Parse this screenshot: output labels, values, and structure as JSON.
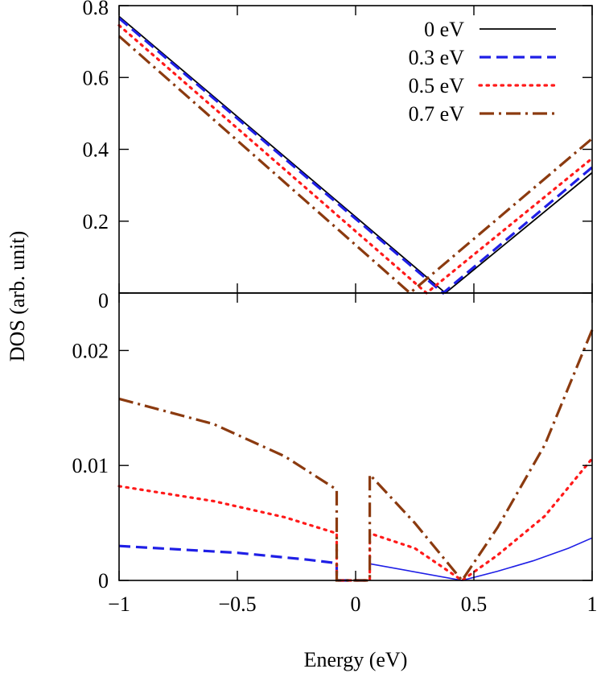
{
  "chart_data": [
    {
      "type": "line",
      "panel": "top",
      "ylim": [
        0,
        0.8
      ],
      "xlim": [
        -1,
        1
      ],
      "yticks": [
        "0",
        "0.2",
        "0.4",
        "0.6",
        "0.8"
      ],
      "legend": {
        "placement": "top-right"
      },
      "series": [
        {
          "name": "0 eV",
          "color": "#000000",
          "style": "solid",
          "points": [
            [
              -1,
              0.77
            ],
            [
              0.38,
              0.0
            ],
            [
              1,
              0.335
            ]
          ]
        },
        {
          "name": "0.3 eV",
          "color": "#1f1fe6",
          "style": "dashed",
          "points": [
            [
              -1,
              0.765
            ],
            [
              0.37,
              0.0
            ],
            [
              1,
              0.35
            ]
          ]
        },
        {
          "name": "0.5 eV",
          "color": "#ff1a1a",
          "style": "dotted",
          "points": [
            [
              -1,
              0.745
            ],
            [
              0.3,
              0.0
            ],
            [
              1,
              0.375
            ]
          ]
        },
        {
          "name": "0.7 eV",
          "color": "#8b3a0f",
          "style": "dashdot",
          "points": [
            [
              -1,
              0.715
            ],
            [
              0.23,
              0.0
            ],
            [
              1,
              0.43
            ]
          ]
        }
      ]
    },
    {
      "type": "line",
      "panel": "bottom",
      "ylim": [
        0,
        0.025
      ],
      "xlim": [
        -1,
        1
      ],
      "yticks": [
        "0",
        "0.01",
        "0.02"
      ],
      "xticks": [
        "−1",
        "−0.5",
        "0",
        "0.5",
        "1"
      ],
      "xlabel": "Energy (eV)",
      "ylabel": "DOS (arb. unit)",
      "series": [
        {
          "name": "0 eV",
          "color": "#1f1fe6",
          "style": "solid",
          "points": [
            [
              0.06,
              0.00145
            ],
            [
              0.45,
              0.0
            ],
            [
              0.6,
              0.0008
            ],
            [
              0.75,
              0.0017
            ],
            [
              0.9,
              0.0028
            ],
            [
              1,
              0.0037
            ]
          ]
        },
        {
          "name": "0.3 eV",
          "color": "#1f1fe6",
          "style": "dashed",
          "points": [
            [
              -1,
              0.003
            ],
            [
              -0.5,
              0.0024
            ],
            [
              -0.2,
              0.0018
            ],
            [
              -0.08,
              0.0015
            ],
            [
              -0.08,
              0.0
            ],
            [
              0.06,
              0.0
            ]
          ]
        },
        {
          "name": "0.5 eV",
          "color": "#ff1a1a",
          "style": "dotted",
          "points": [
            [
              -1,
              0.0082
            ],
            [
              -0.6,
              0.0069
            ],
            [
              -0.3,
              0.0055
            ],
            [
              -0.08,
              0.0041
            ],
            [
              -0.08,
              0.0
            ],
            [
              0.06,
              0.0
            ],
            [
              0.06,
              0.0041
            ],
            [
              0.25,
              0.0028
            ],
            [
              0.45,
              0.0
            ],
            [
              0.6,
              0.0022
            ],
            [
              0.8,
              0.0056
            ],
            [
              1,
              0.0106
            ]
          ]
        },
        {
          "name": "0.7 eV",
          "color": "#8b3a0f",
          "style": "dashdot",
          "points": [
            [
              -1,
              0.0158
            ],
            [
              -0.6,
              0.0136
            ],
            [
              -0.3,
              0.0108
            ],
            [
              -0.08,
              0.0079
            ],
            [
              -0.08,
              0.0
            ],
            [
              0.06,
              0.0
            ],
            [
              0.06,
              0.0092
            ],
            [
              0.25,
              0.005
            ],
            [
              0.45,
              0.0
            ],
            [
              0.6,
              0.0046
            ],
            [
              0.8,
              0.0118
            ],
            [
              1,
              0.0218
            ]
          ]
        }
      ]
    }
  ]
}
